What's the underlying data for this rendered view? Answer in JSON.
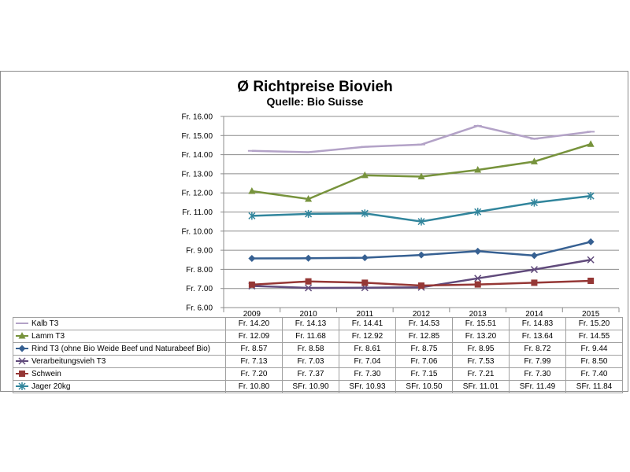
{
  "chart_data": {
    "type": "line",
    "title": "Ø Richtpreise Biovieh",
    "subtitle": "Quelle: Bio Suisse",
    "x": [
      "2009",
      "2010",
      "2011",
      "2012",
      "2013",
      "2014",
      "2015"
    ],
    "ylim": [
      6,
      16
    ],
    "yticks": [
      "Fr. 6.00",
      "Fr. 7.00",
      "Fr. 8.00",
      "Fr. 9.00",
      "Fr. 10.00",
      "Fr. 11.00",
      "Fr. 12.00",
      "Fr. 13.00",
      "Fr. 14.00",
      "Fr. 15.00",
      "Fr. 16.00"
    ],
    "ytick_values": [
      6,
      7,
      8,
      9,
      10,
      11,
      12,
      13,
      14,
      15,
      16
    ],
    "grid": true,
    "legend": "data table below the chart",
    "series": [
      {
        "name": "Kalb T3",
        "color": "#b3a2c7",
        "marker": "dash",
        "values": [
          14.2,
          14.13,
          14.41,
          14.53,
          15.51,
          14.83,
          15.2
        ],
        "labels": [
          "Fr. 14.20",
          "Fr. 14.13",
          "Fr. 14.41",
          "Fr. 14.53",
          "Fr. 15.51",
          "Fr. 14.83",
          "Fr. 15.20"
        ]
      },
      {
        "name": "Lamm T3",
        "color": "#77933c",
        "marker": "triangle",
        "values": [
          12.09,
          11.68,
          12.92,
          12.85,
          13.2,
          13.64,
          14.55
        ],
        "labels": [
          "Fr. 12.09",
          "Fr. 11.68",
          "Fr. 12.92",
          "Fr. 12.85",
          "Fr. 13.20",
          "Fr. 13.64",
          "Fr. 14.55"
        ]
      },
      {
        "name": "Rind T3 (ohne Bio Weide Beef und Naturabeef Bio)",
        "color": "#366092",
        "marker": "diamond",
        "values": [
          8.57,
          8.58,
          8.61,
          8.75,
          8.95,
          8.72,
          9.44
        ],
        "labels": [
          "Fr. 8.57",
          "Fr. 8.58",
          "Fr. 8.61",
          "Fr. 8.75",
          "Fr. 8.95",
          "Fr. 8.72",
          "Fr. 9.44"
        ]
      },
      {
        "name": "Verarbeitungsvieh T3",
        "color": "#604a7b",
        "marker": "x",
        "values": [
          7.13,
          7.03,
          7.04,
          7.06,
          7.53,
          7.99,
          8.5
        ],
        "labels": [
          "Fr. 7.13",
          "Fr. 7.03",
          "Fr. 7.04",
          "Fr. 7.06",
          "Fr. 7.53",
          "Fr. 7.99",
          "Fr. 8.50"
        ]
      },
      {
        "name": "Schwein",
        "color": "#953735",
        "marker": "square",
        "values": [
          7.2,
          7.37,
          7.3,
          7.15,
          7.21,
          7.3,
          7.4
        ],
        "labels": [
          "Fr. 7.20",
          "Fr. 7.37",
          "Fr. 7.30",
          "Fr. 7.15",
          "Fr. 7.21",
          "Fr. 7.30",
          "Fr. 7.40"
        ]
      },
      {
        "name": "Jager 20kg",
        "color": "#31859c",
        "marker": "star",
        "values": [
          10.8,
          10.9,
          10.93,
          10.5,
          11.01,
          11.49,
          11.84
        ],
        "labels": [
          "Fr. 10.80",
          "SFr. 10.90",
          "SFr. 10.93",
          "SFr. 10.50",
          "SFr. 11.01",
          "SFr. 11.49",
          "SFr. 11.84"
        ]
      }
    ]
  }
}
